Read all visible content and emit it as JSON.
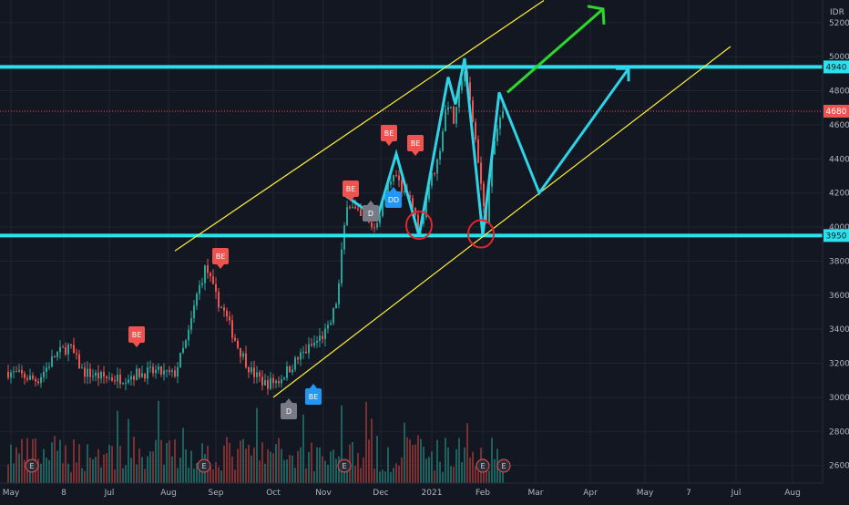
{
  "chart_data": {
    "type": "candlestick",
    "currency_label": "IDR",
    "y_ticks": [
      2600,
      2800,
      3000,
      3200,
      3400,
      3600,
      3800,
      4000,
      4200,
      4400,
      4600,
      4800,
      5000,
      5200
    ],
    "ylim": [
      2550,
      5290
    ],
    "x_tick_labels": [
      "May",
      "8",
      "Jul",
      "Aug",
      "Sep",
      "Oct",
      "Nov",
      "Dec",
      "2021",
      "Feb",
      "Mar",
      "Apr",
      "May",
      "7",
      "Jul",
      "Aug"
    ],
    "price_levels": [
      {
        "value": 4940,
        "label": "4940",
        "kind": "resistance"
      },
      {
        "value": 3950,
        "label": "3950",
        "kind": "support"
      }
    ],
    "last_price": {
      "value": 4680,
      "label": "4680"
    },
    "channel_lines": [
      {
        "name": "upper",
        "from": [
          0,
          3860
        ],
        "to": [
          1,
          5330
        ]
      },
      {
        "name": "lower",
        "from": [
          0,
          3000
        ],
        "to": [
          1,
          5060
        ]
      }
    ],
    "projection_path": [
      [
        0,
        4190
      ],
      [
        0.13,
        4050
      ],
      [
        0.2,
        4430
      ],
      [
        0.3,
        3950
      ],
      [
        0.45,
        4880
      ],
      [
        0.51,
        4720
      ],
      [
        0.6,
        4990
      ],
      [
        0.68,
        3950
      ],
      [
        0.79,
        4790
      ],
      [
        0.96,
        4200
      ],
      [
        1.24,
        4930
      ]
    ],
    "bullish_arrow": {
      "from": [
        0.79,
        4790
      ],
      "to": [
        1.04,
        5280
      ]
    },
    "circled_lows": [
      [
        0.3,
        4010
      ],
      [
        0.68,
        3960
      ]
    ],
    "signals": [
      {
        "text": "BE",
        "kind": "bear",
        "at": [
          0.2,
          3520
        ]
      },
      {
        "text": "BE",
        "kind": "bear",
        "at": [
          0.33,
          3890
        ]
      },
      {
        "text": "BE",
        "kind": "bear",
        "at": [
          0.55,
          4300
        ]
      },
      {
        "text": "BE",
        "kind": "bear",
        "at": [
          0.61,
          4650
        ]
      },
      {
        "text": "BE",
        "kind": "bear",
        "at": [
          0.66,
          4530
        ]
      },
      {
        "text": "D",
        "kind": "neutral",
        "at": [
          0.44,
          3010
        ]
      },
      {
        "text": "D",
        "kind": "neutral",
        "at": [
          0.59,
          4180
        ]
      },
      {
        "text": "BE",
        "kind": "bull",
        "at": [
          0.48,
          3040
        ]
      },
      {
        "text": "DD",
        "kind": "bull",
        "at": [
          0.62,
          4260
        ]
      }
    ],
    "event_markers": [
      "E",
      "E",
      "E",
      "E",
      "E"
    ],
    "colors": {
      "background": "#131722",
      "up": "#26a69a",
      "down": "#ef5350",
      "level": "#2ae2ee",
      "channel": "#ffef3a",
      "projection": "#2fd3e8",
      "arrow": "#2dd82d",
      "circle": "#e3242b",
      "last_price": "#ef5350",
      "neutral_signal": "#787b86",
      "bull_signal": "#2196f3"
    }
  }
}
